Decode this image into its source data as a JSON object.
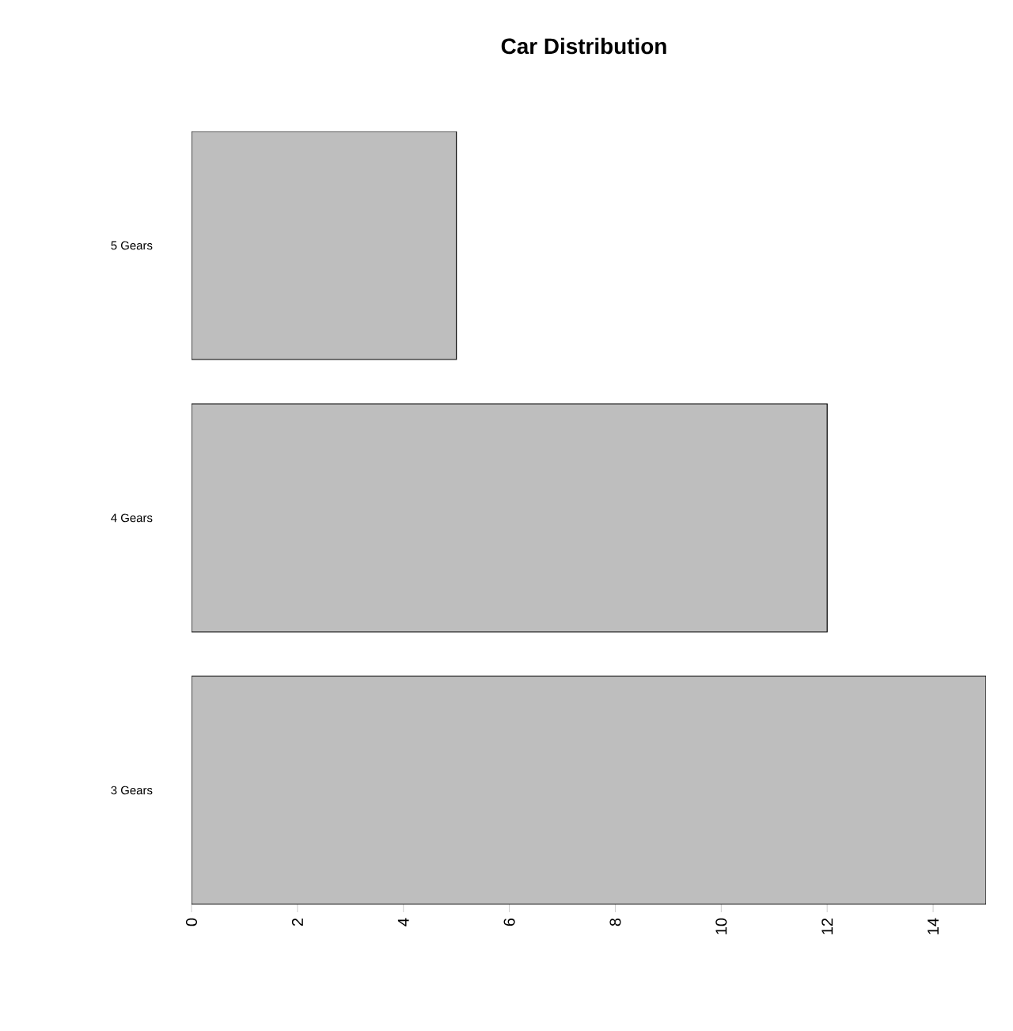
{
  "chart_data": {
    "type": "bar",
    "orientation": "horizontal",
    "title": "Car Distribution",
    "categories": [
      "5 Gears",
      "4 Gears",
      "3 Gears"
    ],
    "values": [
      5,
      12,
      15
    ],
    "color": "#bebebe",
    "xlim": [
      0,
      15
    ],
    "xticks": [
      0,
      2,
      4,
      6,
      8,
      10,
      12,
      14
    ],
    "grid": false
  }
}
